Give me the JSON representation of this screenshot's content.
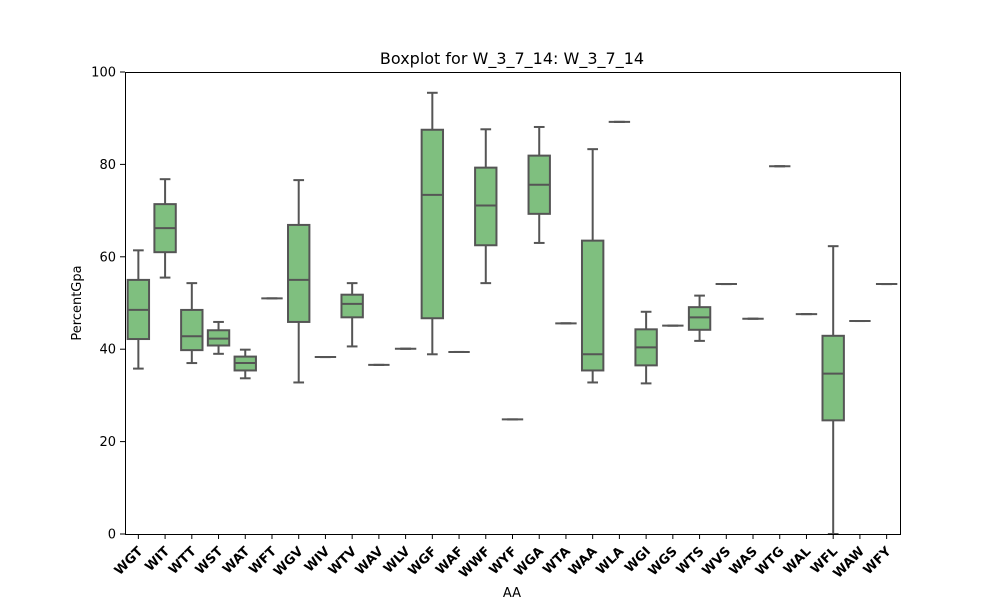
{
  "chart_data": {
    "type": "box",
    "title": "Boxplot for W_3_7_14: W_3_7_14",
    "xlabel": "AA",
    "ylabel": "PercentGpa",
    "ylim": [
      0,
      100
    ],
    "yticks": [
      0,
      20,
      40,
      60,
      80,
      100
    ],
    "grid": false,
    "colors": {
      "box_fill": "#7fbf7f",
      "line": "#555555"
    },
    "categories": [
      "WGT",
      "WIT",
      "WTT",
      "WST",
      "WAT",
      "WFT",
      "WGV",
      "WIV",
      "WTV",
      "WAV",
      "WLV",
      "WGF",
      "WAF",
      "WWF",
      "WYF",
      "WGA",
      "WTA",
      "WAA",
      "WLA",
      "WGI",
      "WGS",
      "WTS",
      "WVS",
      "WAS",
      "WTG",
      "WAL",
      "WFL",
      "WAW",
      "WFY"
    ],
    "boxes": [
      {
        "min": 35.8,
        "q1": 42.2,
        "median": 48.5,
        "q3": 55.0,
        "max": 61.4
      },
      {
        "min": 55.5,
        "q1": 61.0,
        "median": 66.2,
        "q3": 71.4,
        "max": 76.8
      },
      {
        "min": 37.0,
        "q1": 39.8,
        "median": 42.8,
        "q3": 48.5,
        "max": 54.3
      },
      {
        "min": 39.0,
        "q1": 40.8,
        "median": 42.3,
        "q3": 44.1,
        "max": 45.9
      },
      {
        "min": 33.7,
        "q1": 35.4,
        "median": 37.0,
        "q3": 38.4,
        "max": 39.9
      },
      {
        "min": 51.0,
        "q1": 51.0,
        "median": 51.0,
        "q3": 51.0,
        "max": 51.0
      },
      {
        "min": 32.8,
        "q1": 45.9,
        "median": 55.0,
        "q3": 66.9,
        "max": 76.6
      },
      {
        "min": 38.3,
        "q1": 38.3,
        "median": 38.3,
        "q3": 38.3,
        "max": 38.3
      },
      {
        "min": 40.6,
        "q1": 46.9,
        "median": 49.8,
        "q3": 51.8,
        "max": 54.3
      },
      {
        "min": 36.6,
        "q1": 36.6,
        "median": 36.6,
        "q3": 36.6,
        "max": 36.6
      },
      {
        "min": 40.1,
        "q1": 40.1,
        "median": 40.1,
        "q3": 40.1,
        "max": 40.1
      },
      {
        "min": 38.9,
        "q1": 46.7,
        "median": 73.4,
        "q3": 87.5,
        "max": 95.5
      },
      {
        "min": 39.4,
        "q1": 39.4,
        "median": 39.4,
        "q3": 39.4,
        "max": 39.4
      },
      {
        "min": 54.3,
        "q1": 62.5,
        "median": 71.1,
        "q3": 79.3,
        "max": 87.6
      },
      {
        "min": 24.8,
        "q1": 24.8,
        "median": 24.8,
        "q3": 24.8,
        "max": 24.8
      },
      {
        "min": 63.0,
        "q1": 69.3,
        "median": 75.6,
        "q3": 81.9,
        "max": 88.1
      },
      {
        "min": 45.6,
        "q1": 45.6,
        "median": 45.6,
        "q3": 45.6,
        "max": 45.6
      },
      {
        "min": 32.8,
        "q1": 35.4,
        "median": 38.9,
        "q3": 63.5,
        "max": 83.3
      },
      {
        "min": 89.2,
        "q1": 89.2,
        "median": 89.2,
        "q3": 89.2,
        "max": 89.2
      },
      {
        "min": 32.6,
        "q1": 36.5,
        "median": 40.4,
        "q3": 44.3,
        "max": 48.1
      },
      {
        "min": 45.1,
        "q1": 45.1,
        "median": 45.1,
        "q3": 45.1,
        "max": 45.1
      },
      {
        "min": 41.8,
        "q1": 44.2,
        "median": 46.9,
        "q3": 49.1,
        "max": 51.6
      },
      {
        "min": 54.1,
        "q1": 54.1,
        "median": 54.1,
        "q3": 54.1,
        "max": 54.1
      },
      {
        "min": 46.6,
        "q1": 46.6,
        "median": 46.6,
        "q3": 46.6,
        "max": 46.6
      },
      {
        "min": 79.6,
        "q1": 79.6,
        "median": 79.6,
        "q3": 79.6,
        "max": 79.6
      },
      {
        "min": 47.6,
        "q1": 47.6,
        "median": 47.6,
        "q3": 47.6,
        "max": 47.6
      },
      {
        "min": 0.0,
        "q1": 24.6,
        "median": 34.7,
        "q3": 42.9,
        "max": 62.3
      },
      {
        "min": 46.1,
        "q1": 46.1,
        "median": 46.1,
        "q3": 46.1,
        "max": 46.1
      },
      {
        "min": 54.1,
        "q1": 54.1,
        "median": 54.1,
        "q3": 54.1,
        "max": 54.1
      }
    ]
  }
}
